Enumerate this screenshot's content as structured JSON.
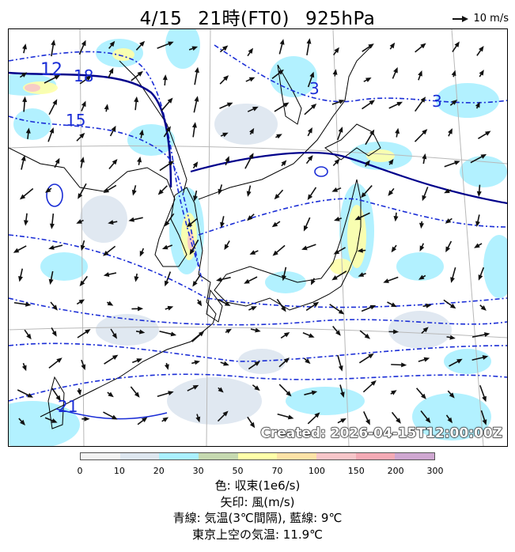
{
  "header": {
    "date": "4/15",
    "time": "21時(FT0)",
    "level": "925hPa",
    "vector_ref_label": "10 m/s"
  },
  "map": {
    "contour_labels": [
      "12",
      "18",
      "15",
      "3",
      "3",
      "21"
    ],
    "created_stamp": "Created: 2026-04-15T12:00:00Z"
  },
  "colorbar": {
    "ticks": [
      "0",
      "10",
      "20",
      "30",
      "50",
      "70",
      "100",
      "150",
      "200",
      "300"
    ],
    "colors": [
      "#f2f2f2",
      "#dde6ef",
      "#aaf0ff",
      "#c6d9b0",
      "#ffffa8",
      "#fde2a6",
      "#f7c6c9",
      "#f4aab5",
      "#cfa7d1"
    ]
  },
  "legend": {
    "line1": "色: 収束(1e6/s)",
    "line2": "矢印: 風(m/s)",
    "line3": "青線: 気温(3℃間隔), 藍線: 9℃",
    "line4": "東京上空の気温: 11.9℃"
  }
}
